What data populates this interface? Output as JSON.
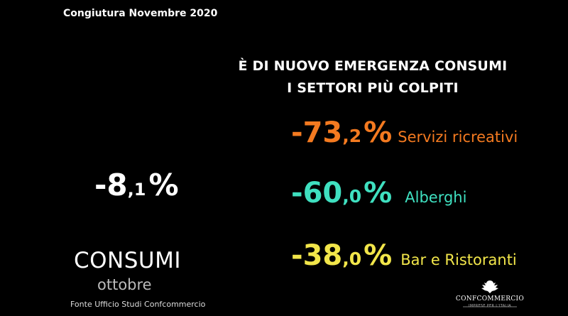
{
  "header": {
    "title": "Congiutura Novembre 2020"
  },
  "headline": {
    "line1": "È DI NUOVO EMERGENZA CONSUMI",
    "line2": "I SETTORI PIÙ COLPITI"
  },
  "main_stat": {
    "int": "-8",
    "dec": ",1",
    "pct": "%"
  },
  "sectors": [
    {
      "int": "-73",
      "dec": ",2",
      "pct": "%",
      "label": "Servizi ricreativi",
      "color": "#f47a20"
    },
    {
      "int": "-60",
      "dec": ",0",
      "pct": "%",
      "label": "Alberghi",
      "color": "#3fe0c0"
    },
    {
      "int": "-38",
      "dec": ",0",
      "pct": "%",
      "label": "Bar e Ristoranti",
      "color": "#f2e64a"
    }
  ],
  "footer": {
    "consumi": "CONSUMI",
    "period": "ottobre",
    "source": "Fonte Ufficio Studi Confcommercio"
  },
  "logo": {
    "name": "CONFCOMMERCIO",
    "tagline": "IMPRESE PER L'ITALIA"
  }
}
